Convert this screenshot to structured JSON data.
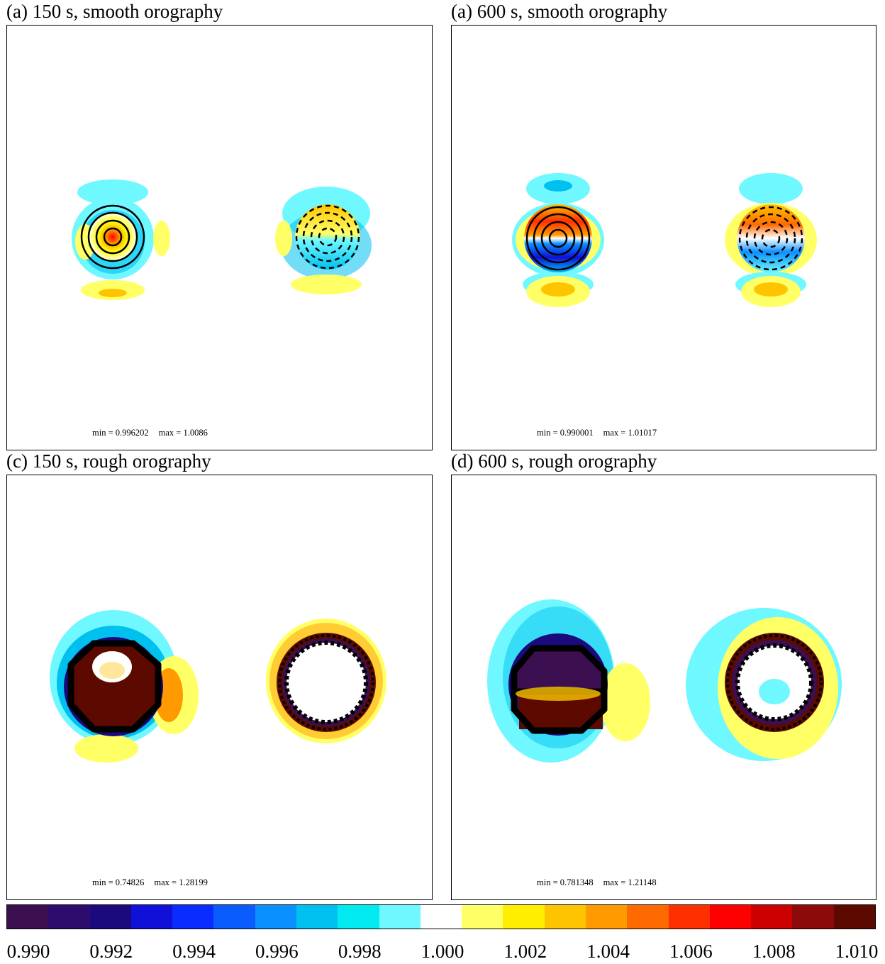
{
  "panels": [
    {
      "id": "a",
      "title": "(a) 150 s, smooth orography",
      "min_label": "min = 0.996202",
      "max_label": "max = 1.0086",
      "orography": "smooth"
    },
    {
      "id": "b",
      "title": "(a) 600 s, smooth orography",
      "min_label": "min = 0.990001",
      "max_label": "max = 1.01017",
      "orography": "smooth"
    },
    {
      "id": "c",
      "title": "(c) 150 s, rough orography",
      "min_label": "min = 0.74826",
      "max_label": "max = 1.28199",
      "orography": "rough"
    },
    {
      "id": "d",
      "title": "(d) 600 s, rough orography",
      "min_label": "min = 0.781348",
      "max_label": "max = 1.21148",
      "orography": "rough"
    }
  ],
  "colorbar": {
    "colors": [
      "#3b0f50",
      "#2d0c6e",
      "#1a0a7d",
      "#1010d8",
      "#0a2cff",
      "#0a5cff",
      "#0a90ff",
      "#00c0f0",
      "#00eaf0",
      "#6ff8ff",
      "#ffffff",
      "#ffff66",
      "#ffee00",
      "#ffc400",
      "#ff9a00",
      "#ff6a00",
      "#ff3000",
      "#ff0000",
      "#cc0000",
      "#8c0a0a",
      "#5c0a00"
    ],
    "tick_labels": [
      "0.990",
      "0.992",
      "0.994",
      "0.996",
      "0.998",
      "1.000",
      "1.002",
      "1.004",
      "1.006",
      "1.008",
      "1.010"
    ]
  },
  "chart_data": {
    "type": "heatmap",
    "colorbar_range": [
      0.99,
      1.01
    ],
    "colorbar_levels": 21,
    "panels": [
      {
        "title": "(a) 150 s, smooth orography",
        "min": 0.996202,
        "max": 1.0086
      },
      {
        "title": "(a) 600 s, smooth orography",
        "min": 0.990001,
        "max": 1.01017
      },
      {
        "title": "(c) 150 s, rough orography",
        "min": 0.74826,
        "max": 1.28199
      },
      {
        "title": "(d) 600 s, rough orography",
        "min": 0.781348,
        "max": 1.21148
      }
    ]
  }
}
